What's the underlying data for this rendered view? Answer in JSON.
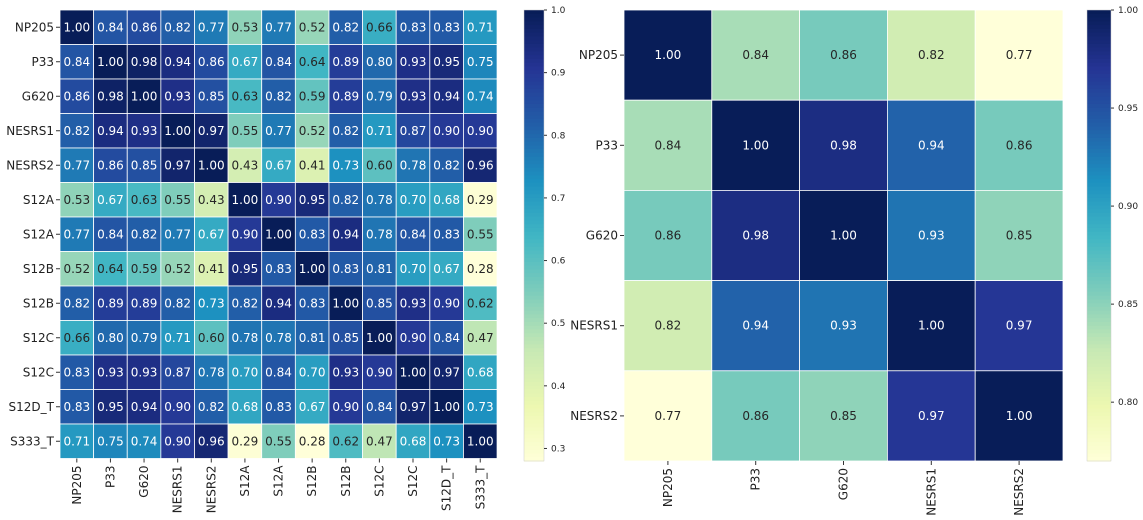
{
  "chart_data": [
    {
      "type": "heatmap",
      "title": "",
      "row_labels": [
        "NP205",
        "P33",
        "G620",
        "NESRS1",
        "NESRS2",
        "S12A",
        "S12A",
        "S12B",
        "S12B",
        "S12C",
        "S12C",
        "S12D_T",
        "S333_T"
      ],
      "col_labels": [
        "NP205",
        "P33",
        "G620",
        "NESRS1",
        "NESRS2",
        "S12A",
        "S12A",
        "S12B",
        "S12B",
        "S12C",
        "S12C",
        "S12D_T",
        "S333_T"
      ],
      "values": [
        [
          1.0,
          0.84,
          0.86,
          0.82,
          0.77,
          0.53,
          0.77,
          0.52,
          0.82,
          0.66,
          0.83,
          0.83,
          0.71
        ],
        [
          0.84,
          1.0,
          0.98,
          0.94,
          0.86,
          0.67,
          0.84,
          0.64,
          0.89,
          0.8,
          0.93,
          0.95,
          0.75
        ],
        [
          0.86,
          0.98,
          1.0,
          0.93,
          0.85,
          0.63,
          0.82,
          0.59,
          0.89,
          0.79,
          0.93,
          0.94,
          0.74
        ],
        [
          0.82,
          0.94,
          0.93,
          1.0,
          0.97,
          0.55,
          0.77,
          0.52,
          0.82,
          0.71,
          0.87,
          0.9,
          0.9
        ],
        [
          0.77,
          0.86,
          0.85,
          0.97,
          1.0,
          0.43,
          0.67,
          0.41,
          0.73,
          0.6,
          0.78,
          0.82,
          0.96
        ],
        [
          0.53,
          0.67,
          0.63,
          0.55,
          0.43,
          1.0,
          0.9,
          0.95,
          0.82,
          0.78,
          0.7,
          0.68,
          0.29
        ],
        [
          0.77,
          0.84,
          0.82,
          0.77,
          0.67,
          0.9,
          1.0,
          0.83,
          0.94,
          0.78,
          0.84,
          0.83,
          0.55
        ],
        [
          0.52,
          0.64,
          0.59,
          0.52,
          0.41,
          0.95,
          0.83,
          1.0,
          0.83,
          0.81,
          0.7,
          0.67,
          0.28
        ],
        [
          0.82,
          0.89,
          0.89,
          0.82,
          0.73,
          0.82,
          0.94,
          0.83,
          1.0,
          0.85,
          0.93,
          0.9,
          0.62
        ],
        [
          0.66,
          0.8,
          0.79,
          0.71,
          0.6,
          0.78,
          0.78,
          0.81,
          0.85,
          1.0,
          0.9,
          0.84,
          0.47
        ],
        [
          0.83,
          0.93,
          0.93,
          0.87,
          0.78,
          0.7,
          0.84,
          0.7,
          0.93,
          0.9,
          1.0,
          0.97,
          0.68
        ],
        [
          0.83,
          0.95,
          0.94,
          0.9,
          0.82,
          0.68,
          0.83,
          0.67,
          0.9,
          0.84,
          0.97,
          1.0,
          0.73
        ],
        [
          0.71,
          0.75,
          0.74,
          0.9,
          0.96,
          0.29,
          0.55,
          0.28,
          0.62,
          0.47,
          0.68,
          0.73,
          1.0
        ]
      ],
      "colormap": "YlGnBu",
      "vmin": 0.28,
      "vmax": 1.0,
      "colorbar_ticks": [
        0.3,
        0.4,
        0.5,
        0.6,
        0.7,
        0.8,
        0.9,
        1.0
      ],
      "colorbar_labels": [
        "0.3",
        "0.4",
        "0.5",
        "0.6",
        "0.7",
        "0.8",
        "0.9",
        "1.0"
      ]
    },
    {
      "type": "heatmap",
      "title": "",
      "row_labels": [
        "NP205",
        "P33",
        "G620",
        "NESRS1",
        "NESRS2"
      ],
      "col_labels": [
        "NP205",
        "P33",
        "G620",
        "NESRS1",
        "NESRS2"
      ],
      "values": [
        [
          1.0,
          0.84,
          0.86,
          0.82,
          0.77
        ],
        [
          0.84,
          1.0,
          0.98,
          0.94,
          0.86
        ],
        [
          0.86,
          0.98,
          1.0,
          0.93,
          0.85
        ],
        [
          0.82,
          0.94,
          0.93,
          1.0,
          0.97
        ],
        [
          0.77,
          0.86,
          0.85,
          0.97,
          1.0
        ]
      ],
      "colormap": "YlGnBu",
      "vmin": 0.77,
      "vmax": 1.0,
      "colorbar_ticks": [
        0.8,
        0.85,
        0.9,
        0.95,
        1.0
      ],
      "colorbar_labels": [
        "0.80",
        "0.85",
        "0.90",
        "0.95",
        "1.00"
      ]
    }
  ]
}
